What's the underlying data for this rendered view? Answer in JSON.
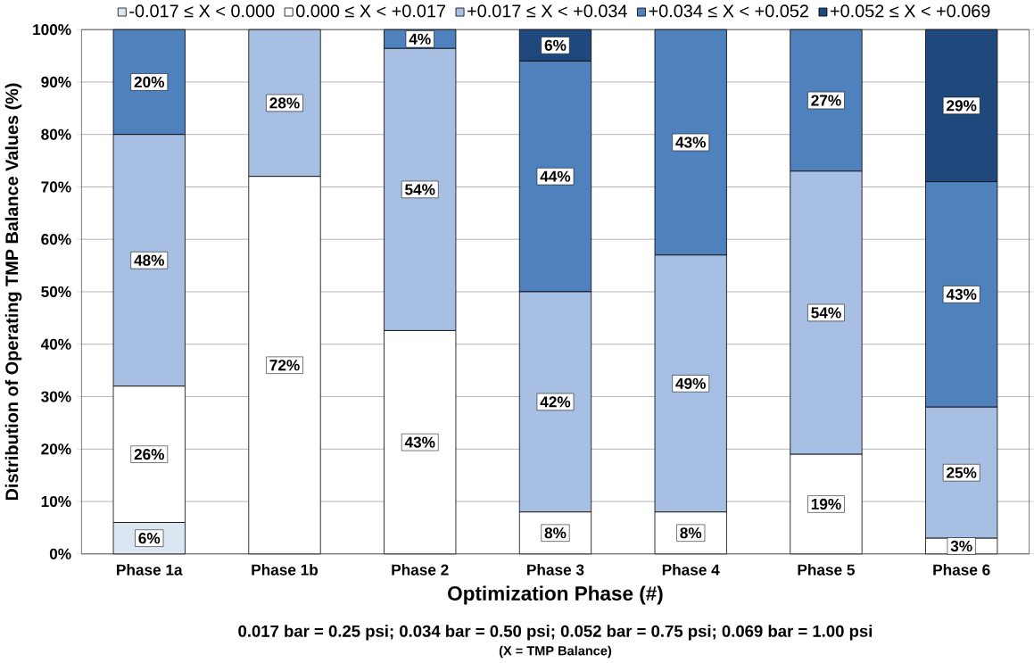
{
  "chart_data": {
    "type": "bar",
    "stacked": true,
    "ylabel": "Distribution of Operating TMP Balance Values (%)",
    "xlabel": "Optimization Phase (#)",
    "annotations": [
      "0.017 bar = 0.25 psi; 0.034 bar = 0.50 psi; 0.052 bar = 0.75 psi; 0.069 bar = 1.00 psi",
      "(X = TMP Balance)"
    ],
    "categories": [
      "Phase 1a",
      "Phase 1b",
      "Phase 2",
      "Phase 3",
      "Phase 4",
      "Phase 5",
      "Phase 6"
    ],
    "series": [
      {
        "name": "-0.017 ≤ X < 0.000",
        "color": "#dce6f2",
        "values": [
          6,
          null,
          null,
          null,
          null,
          null,
          null
        ],
        "value_labels": [
          "6%",
          null,
          null,
          null,
          null,
          null,
          null
        ]
      },
      {
        "name": "0.000 ≤ X < +0.017",
        "color": "#ffffff",
        "values": [
          26,
          72,
          42.6,
          8,
          8,
          19,
          3
        ],
        "value_labels": [
          "26%",
          "72%",
          "43%",
          "8%",
          "8%",
          "19%",
          "3%"
        ]
      },
      {
        "name": "+0.017 ≤ X < +0.034",
        "color": "#a7bfe3",
        "values": [
          48,
          28,
          53.8,
          42,
          49,
          54,
          25
        ],
        "value_labels": [
          "48%",
          "28%",
          "54%",
          "42%",
          "49%",
          "54%",
          "25%"
        ]
      },
      {
        "name": "+0.034 ≤ X < +0.052",
        "color": "#4f81bd",
        "values": [
          20,
          null,
          3.6,
          44,
          43,
          27,
          43
        ],
        "value_labels": [
          "20%",
          null,
          "4%",
          "44%",
          "43%",
          "27%",
          "43%"
        ]
      },
      {
        "name": "+0.052 ≤ X < +0.069",
        "color": "#1f497d",
        "values": [
          null,
          null,
          null,
          6,
          null,
          null,
          29
        ],
        "value_labels": [
          null,
          null,
          null,
          "6%",
          null,
          null,
          "29%"
        ]
      }
    ],
    "ylim": [
      0,
      100
    ],
    "yticks": [
      {
        "value": 0,
        "label": "0%"
      },
      {
        "value": 10,
        "label": "10%"
      },
      {
        "value": 20,
        "label": "20%"
      },
      {
        "value": 30,
        "label": "30%"
      },
      {
        "value": 40,
        "label": "40%"
      },
      {
        "value": 50,
        "label": "50%"
      },
      {
        "value": 60,
        "label": "60%"
      },
      {
        "value": 70,
        "label": "70%"
      },
      {
        "value": 80,
        "label": "80%"
      },
      {
        "value": 90,
        "label": "90%"
      },
      {
        "value": 100,
        "label": "100%"
      }
    ],
    "grid": "y",
    "legend": "top"
  }
}
